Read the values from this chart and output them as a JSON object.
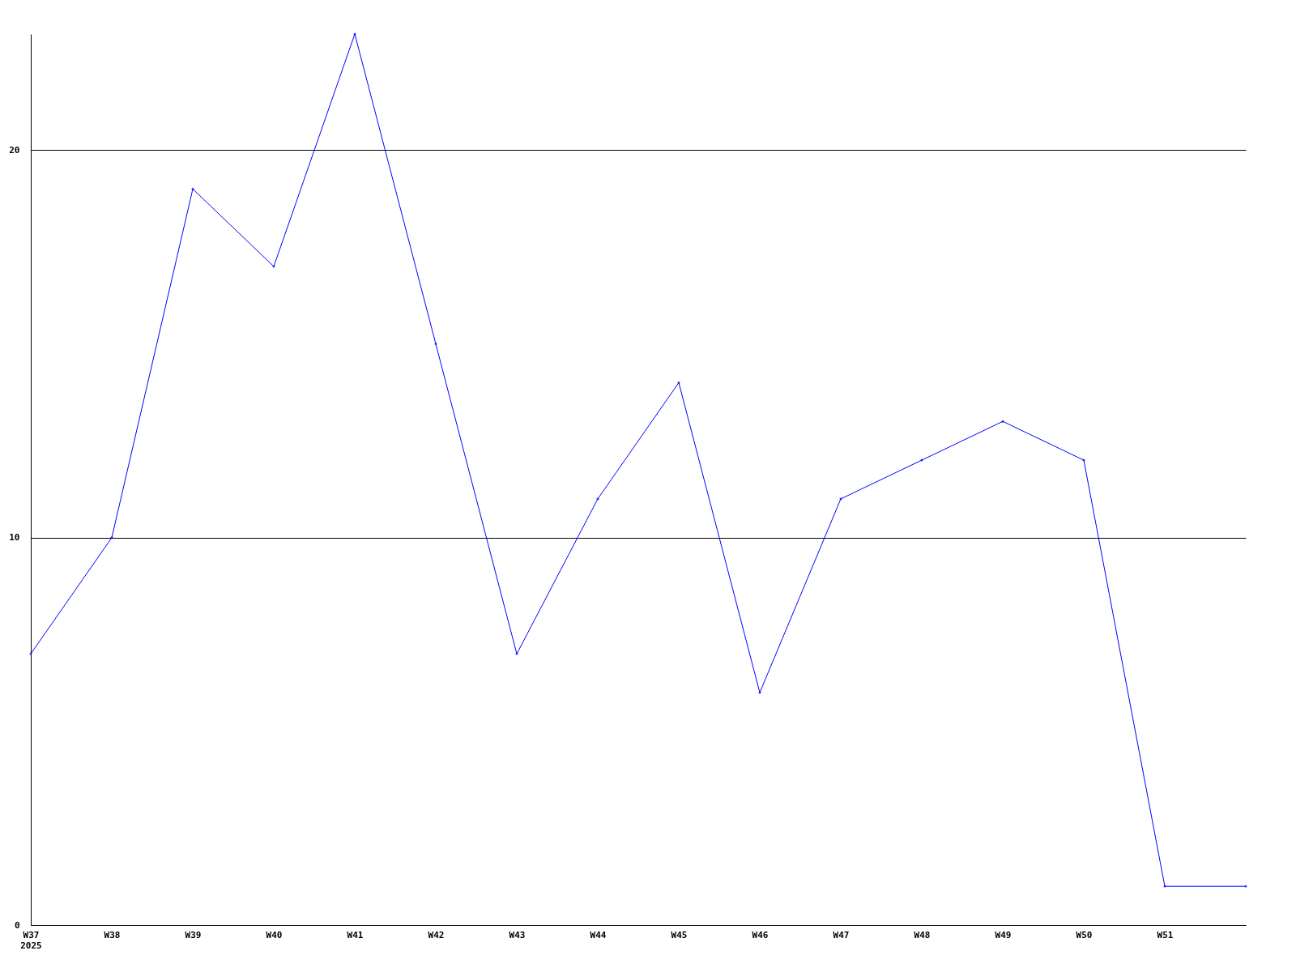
{
  "chart_data": {
    "type": "line",
    "categories": [
      "W37\n2025",
      "W38",
      "W39",
      "W40",
      "W41",
      "W42",
      "W43",
      "W44",
      "W45",
      "W46",
      "W47",
      "W48",
      "W49",
      "W50",
      "W51",
      null
    ],
    "series": [
      {
        "color": "#0000ff",
        "values": [
          7,
          10,
          19,
          17,
          23,
          15,
          7,
          11,
          14,
          6,
          11,
          12,
          13,
          12,
          1,
          1
        ]
      }
    ],
    "ylim": [
      0,
      23
    ],
    "yticks": [
      0,
      10,
      20
    ],
    "grid": "y",
    "marker": "diamond",
    "line_style": "solid"
  }
}
